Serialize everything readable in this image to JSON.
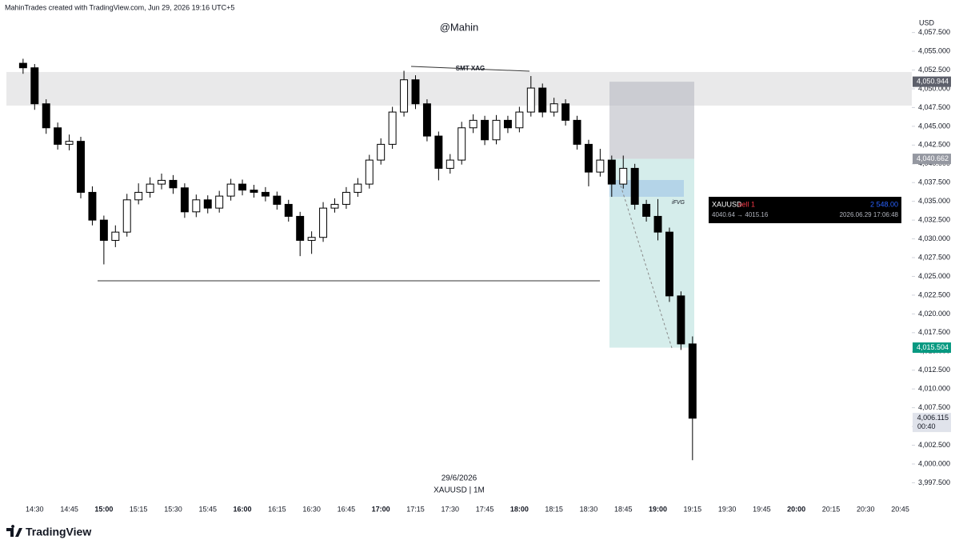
{
  "header": {
    "credit": "MahinTrades created with TradingView.com, Jun 29, 2026 19:16 UTC+5",
    "watermark": "@Mahin",
    "date": "29/6/2026",
    "symbol": "XAUUSD | 1M",
    "brand": "TradingView"
  },
  "chart_data": {
    "type": "candlestick",
    "currency": "USD",
    "x": [
      "14:25",
      "14:30",
      "14:35",
      "14:40",
      "14:45",
      "14:50",
      "14:55",
      "15:00",
      "15:05",
      "15:10",
      "15:15",
      "15:20",
      "15:25",
      "15:30",
      "15:35",
      "15:40",
      "15:45",
      "15:50",
      "15:55",
      "16:00",
      "16:05",
      "16:10",
      "16:15",
      "16:20",
      "16:25",
      "16:30",
      "16:35",
      "16:40",
      "16:45",
      "16:50",
      "16:55",
      "17:00",
      "17:05",
      "17:10",
      "17:15",
      "17:20",
      "17:25",
      "17:30",
      "17:35",
      "17:40",
      "17:45",
      "17:50",
      "17:55",
      "18:00",
      "18:05",
      "18:10",
      "18:15",
      "18:20",
      "18:25",
      "18:30",
      "18:35",
      "18:40",
      "18:45",
      "18:50",
      "18:55",
      "19:00",
      "19:05",
      "19:10",
      "19:15"
    ],
    "open": [
      4053.4,
      4052.8,
      4048.0,
      4044.8,
      4042.6,
      4043.0,
      4036.2,
      4032.5,
      4029.8,
      4030.9,
      4035.2,
      4036.2,
      4037.3,
      4037.8,
      4036.8,
      4033.6,
      4035.2,
      4034.1,
      4035.7,
      4037.3,
      4036.5,
      4036.2,
      4035.7,
      4034.6,
      4033.0,
      4029.8,
      4030.2,
      4034.1,
      4034.6,
      4036.2,
      4037.3,
      4040.5,
      4042.6,
      4046.9,
      4051.2,
      4048.0,
      4043.7,
      4039.4,
      4040.5,
      4044.8,
      4045.8,
      4043.2,
      4045.8,
      4044.8,
      4046.9,
      4050.1,
      4046.9,
      4048.0,
      4045.8,
      4042.6,
      4038.9,
      4040.5,
      4037.3,
      4039.4,
      4034.6,
      4033.0,
      4030.9,
      4022.4,
      4016.0
    ],
    "high": [
      4054.0,
      4053.3,
      4048.6,
      4045.5,
      4043.9,
      4043.6,
      4037.0,
      4033.1,
      4031.8,
      4036.0,
      4037.4,
      4038.2,
      4038.7,
      4038.5,
      4037.4,
      4035.9,
      4035.8,
      4036.4,
      4038.0,
      4037.9,
      4037.2,
      4036.9,
      4036.3,
      4035.2,
      4033.6,
      4031.0,
      4034.9,
      4035.4,
      4036.9,
      4038.1,
      4041.2,
      4043.4,
      4047.6,
      4052.4,
      4051.8,
      4048.6,
      4044.3,
      4041.3,
      4045.6,
      4046.6,
      4046.4,
      4046.5,
      4046.4,
      4047.6,
      4051.7,
      4050.7,
      4048.8,
      4048.6,
      4046.4,
      4043.2,
      4042.0,
      4041.1,
      4041.1,
      4040.0,
      4035.2,
      4035.3,
      4031.5,
      4023.0,
      4017.0
    ],
    "low": [
      4052.0,
      4047.2,
      4044.0,
      4041.9,
      4041.8,
      4035.4,
      4031.8,
      4026.6,
      4028.9,
      4030.3,
      4034.6,
      4035.5,
      4036.6,
      4036.0,
      4032.8,
      4032.9,
      4033.4,
      4033.5,
      4035.1,
      4035.8,
      4035.5,
      4035.0,
      4033.9,
      4032.3,
      4027.7,
      4028.0,
      4029.6,
      4033.5,
      4034.0,
      4035.6,
      4036.7,
      4039.9,
      4042.0,
      4046.3,
      4047.3,
      4043.0,
      4037.8,
      4038.7,
      4039.9,
      4044.1,
      4042.5,
      4042.6,
      4044.1,
      4044.2,
      4046.3,
      4046.2,
      4046.3,
      4045.1,
      4041.9,
      4037.0,
      4038.3,
      4035.6,
      4036.7,
      4033.9,
      4032.3,
      4029.8,
      4021.6,
      4015.2,
      4000.5
    ],
    "close": [
      4052.8,
      4048.0,
      4044.8,
      4042.6,
      4043.0,
      4036.2,
      4032.5,
      4029.8,
      4030.9,
      4035.2,
      4036.2,
      4037.3,
      4037.8,
      4036.8,
      4033.6,
      4035.2,
      4034.1,
      4035.7,
      4037.3,
      4036.5,
      4036.2,
      4035.7,
      4034.6,
      4033.0,
      4029.8,
      4030.2,
      4034.1,
      4034.6,
      4036.2,
      4037.3,
      4040.5,
      4042.6,
      4046.9,
      4051.2,
      4048.0,
      4043.7,
      4039.4,
      4040.5,
      4044.8,
      4045.8,
      4043.2,
      4045.8,
      4044.8,
      4046.9,
      4050.1,
      4046.9,
      4048.0,
      4045.8,
      4042.6,
      4038.9,
      4040.5,
      4037.3,
      4039.4,
      4034.6,
      4033.0,
      4030.9,
      4022.4,
      4016.0,
      4006.1
    ],
    "up_color": "#ffffff",
    "down_color": "#000000",
    "xlim": [
      "14:15",
      "20:50"
    ],
    "xticks": [
      "14:30",
      "14:45",
      "15:00",
      "15:15",
      "15:30",
      "15:45",
      "16:00",
      "16:15",
      "16:30",
      "16:45",
      "17:00",
      "17:15",
      "17:30",
      "17:45",
      "18:00",
      "18:15",
      "18:30",
      "18:45",
      "19:00",
      "19:15",
      "19:30",
      "19:45",
      "20:00",
      "20:15",
      "20:30",
      "20:45"
    ],
    "ylim": [
      3995.2,
      4059.7
    ],
    "yticks": [
      {
        "value": 3997.5,
        "label": "3,997.500"
      },
      {
        "value": 4000,
        "label": "4,000.000"
      },
      {
        "value": 4002.5,
        "label": "4,002.500"
      },
      {
        "value": 4005,
        "label": "4,005.000"
      },
      {
        "value": 4007.5,
        "label": "4,007.500"
      },
      {
        "value": 4010,
        "label": "4,010.000"
      },
      {
        "value": 4012.5,
        "label": "4,012.500"
      },
      {
        "value": 4015,
        "label": "4,015.000"
      },
      {
        "value": 4017.5,
        "label": "4,017.500"
      },
      {
        "value": 4020,
        "label": "4,020.000"
      },
      {
        "value": 4022.5,
        "label": "4,022.500"
      },
      {
        "value": 4025,
        "label": "4,025.000"
      },
      {
        "value": 4027.5,
        "label": "4,027.500"
      },
      {
        "value": 4030,
        "label": "4,030.000"
      },
      {
        "value": 4032.5,
        "label": "4,032.500"
      },
      {
        "value": 4035,
        "label": "4,035.000"
      },
      {
        "value": 4037.5,
        "label": "4,037.500"
      },
      {
        "value": 4040,
        "label": "4,040.000"
      },
      {
        "value": 4042.5,
        "label": "4,042.500"
      },
      {
        "value": 4045,
        "label": "4,045.000"
      },
      {
        "value": 4047.5,
        "label": "4,047.500"
      },
      {
        "value": 4050,
        "label": "4,050.000"
      },
      {
        "value": 4052.5,
        "label": "4,052.500"
      },
      {
        "value": 4055,
        "label": "4,055.000"
      },
      {
        "value": 4057.5,
        "label": "4,057.500"
      }
    ],
    "price_labels": [
      {
        "value": 4050.944,
        "label": "4,050.944",
        "color": "#5d606b",
        "text_color": "#ffffff"
      },
      {
        "value": 4040.662,
        "label": "4,040.662",
        "color": "#9598a1",
        "text_color": "#ffffff"
      },
      {
        "value": 4015.504,
        "label": "4,015.504",
        "color": "#089981",
        "text_color": "#ffffff"
      },
      {
        "value": 4006.115,
        "label": "4,006.115",
        "color": "#e0e3eb",
        "text_color": "#131722",
        "countdown": "00:40"
      }
    ],
    "annotations": {
      "smt": "SMT XAG",
      "ifvg": "iFVG"
    },
    "trade": {
      "symbol": "XAUUSD",
      "side": "sell 1",
      "amount": "2 548.00",
      "route": "4040.64 → 4015.16",
      "time": "2026.06.29 17:06:48"
    }
  }
}
